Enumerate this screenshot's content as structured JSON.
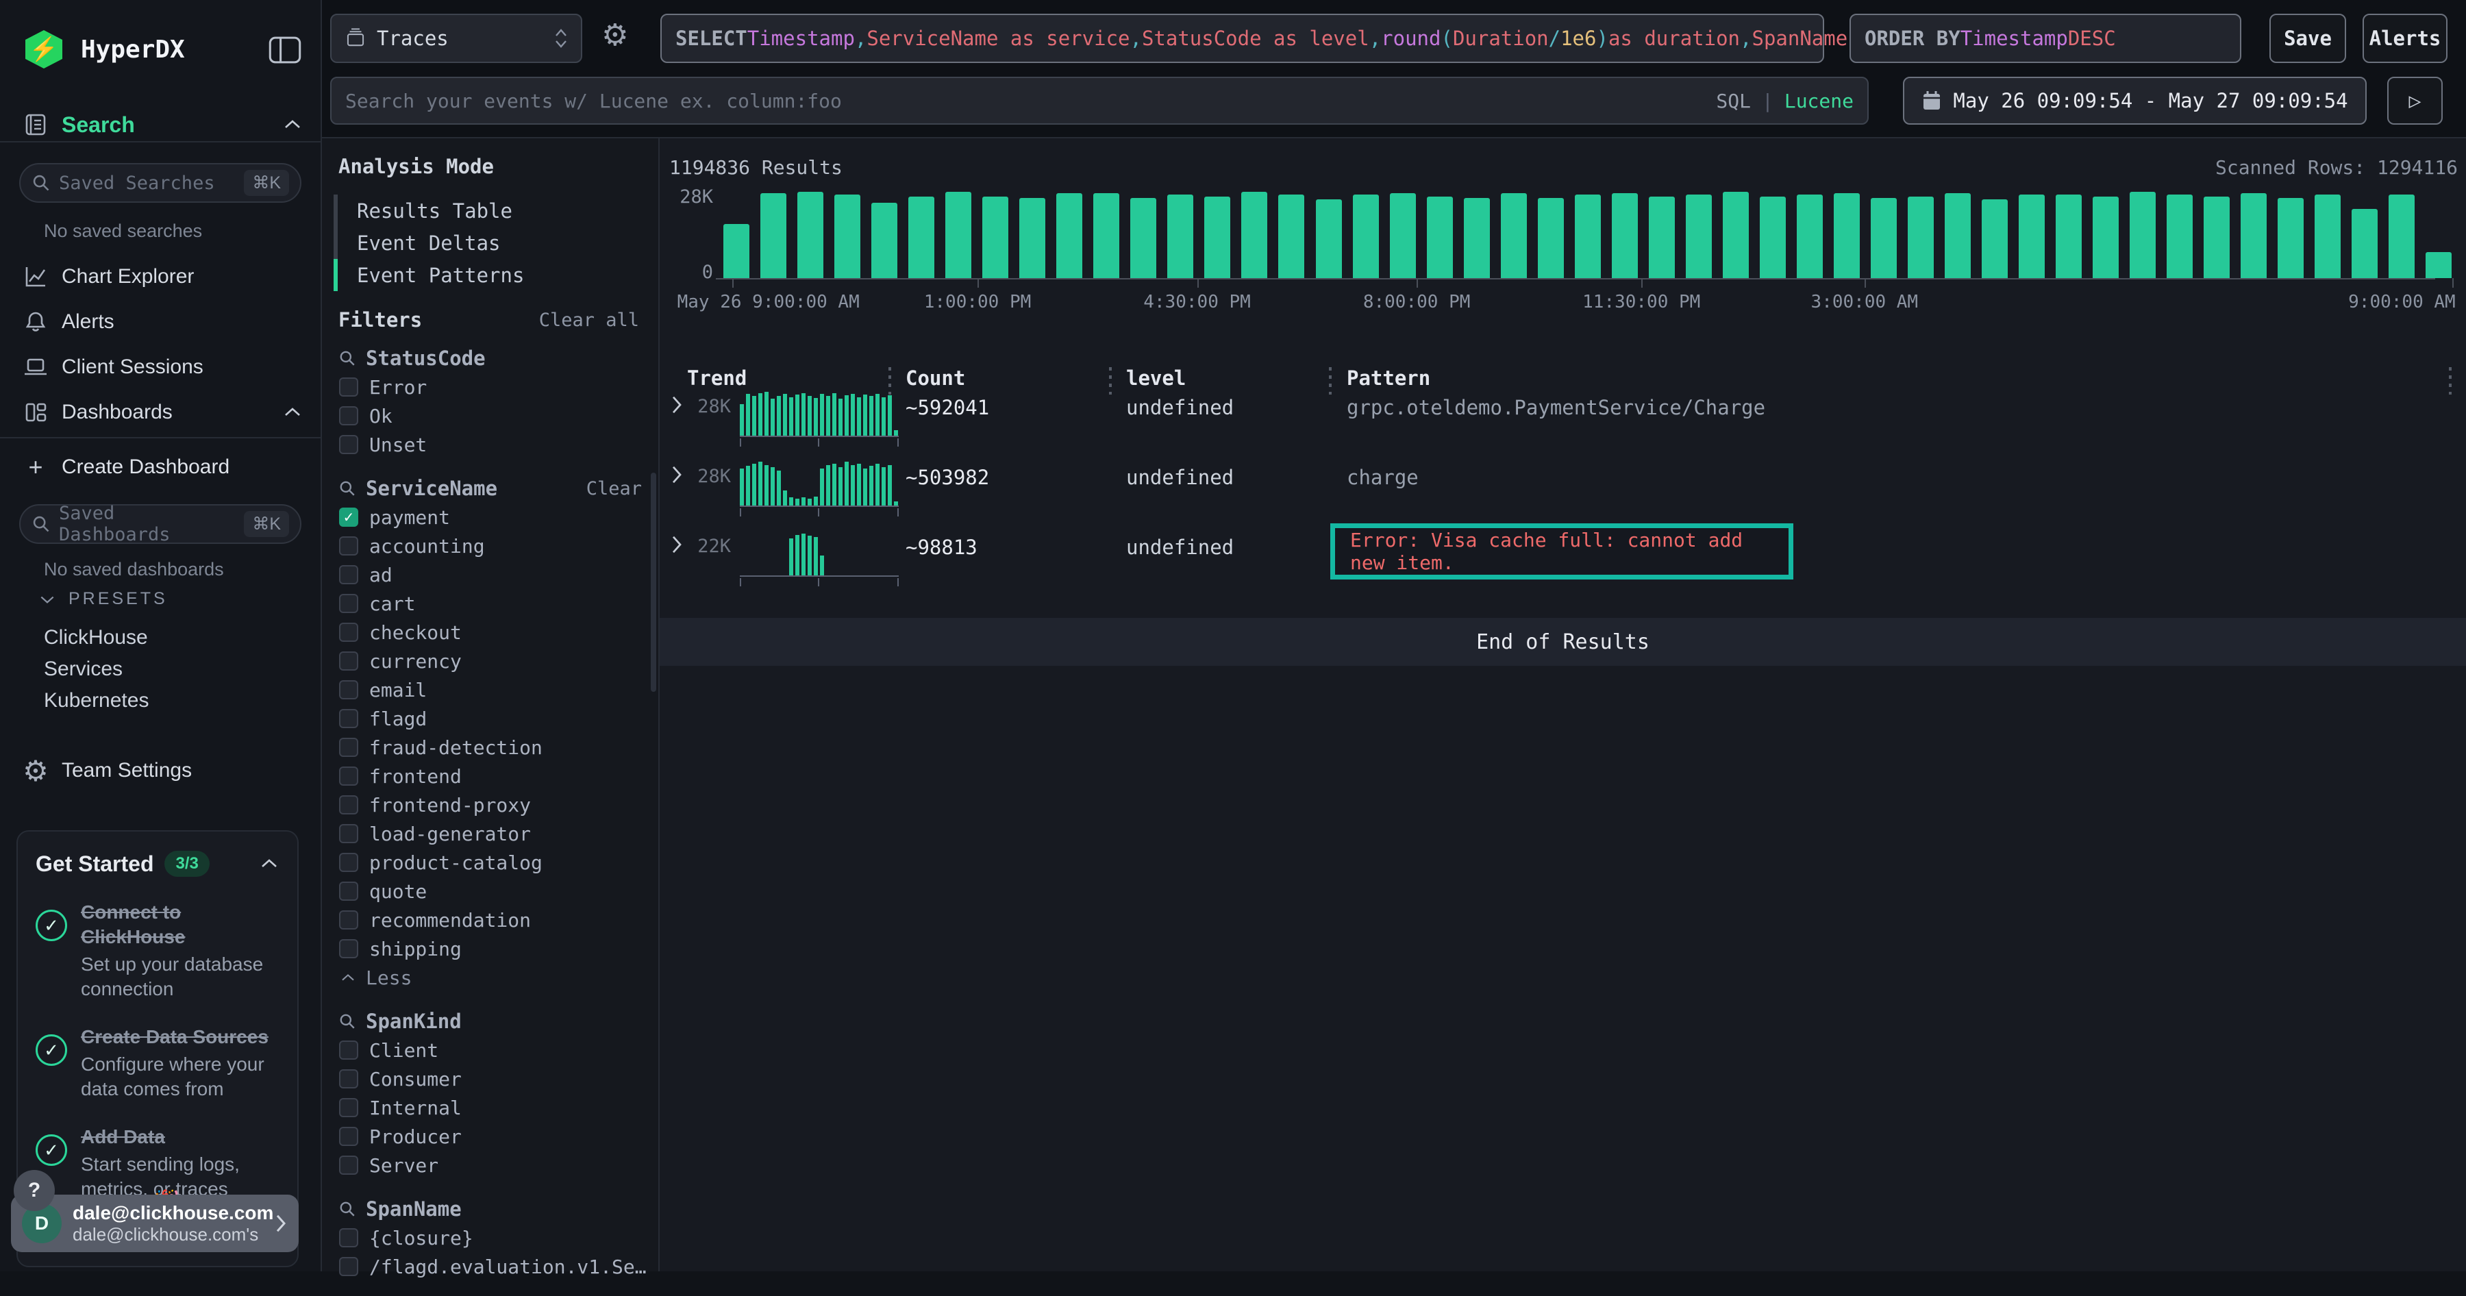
{
  "colors": {
    "accent": "#3fdb9b",
    "bar": "#26c998",
    "error_text": "#ef6a6a",
    "highlight_border": "#14b8a2",
    "logo_green": "#25d45f"
  },
  "sidebar": {
    "brand": "HyperDX",
    "search_label": "Search",
    "saved_searches_placeholder": "Saved Searches",
    "shortcut": "⌘K",
    "no_saved_searches": "No saved searches",
    "nav_chart_explorer": "Chart Explorer",
    "nav_alerts": "Alerts",
    "nav_client_sessions": "Client Sessions",
    "nav_dashboards": "Dashboards",
    "create_dashboard_plus": "+",
    "create_dashboard": "Create Dashboard",
    "saved_dashboards_placeholder": "Saved Dashboards",
    "no_saved_dashboards": "No saved dashboards",
    "presets_label": "PRESETS",
    "presets": [
      "ClickHouse",
      "Services",
      "Kubernetes"
    ],
    "team_settings": "Team Settings",
    "get_started": {
      "title": "Get Started",
      "badge": "3/3",
      "items": [
        {
          "title": "Connect to ClickHouse",
          "subtitle": "Set up your database connection"
        },
        {
          "title": "Create Data Sources",
          "subtitle": "Configure where your data comes from"
        },
        {
          "title": "Add Data",
          "subtitle": "Start sending logs, metrics, or traces"
        }
      ]
    },
    "help": "?",
    "hidden_item_emoji": "🎉",
    "user": {
      "initial": "D",
      "name": "dale@clickhouse.com",
      "subtitle": "dale@clickhouse.com's"
    }
  },
  "topbar": {
    "source": "Traces",
    "sql_tokens": [
      {
        "t": "SELECT ",
        "k": "kw"
      },
      {
        "t": "Timestamp",
        "k": "p"
      },
      {
        "t": ", ",
        "k": "c"
      },
      {
        "t": "ServiceName as service",
        "k": "r"
      },
      {
        "t": ", ",
        "k": "c"
      },
      {
        "t": "StatusCode as level",
        "k": "r"
      },
      {
        "t": ", ",
        "k": "c"
      },
      {
        "t": "round",
        "k": "p"
      },
      {
        "t": "(",
        "k": "c"
      },
      {
        "t": "Duration",
        "k": "r"
      },
      {
        "t": " / ",
        "k": "c"
      },
      {
        "t": "1e6",
        "k": "y"
      },
      {
        "t": ")",
        "k": "c"
      },
      {
        "t": " as duration",
        "k": "r"
      },
      {
        "t": ", ",
        "k": "c"
      },
      {
        "t": "SpanName",
        "k": "r"
      }
    ],
    "order_tokens": [
      {
        "t": "ORDER BY ",
        "k": "kw"
      },
      {
        "t": "Timestamp ",
        "k": "p"
      },
      {
        "t": "DESC",
        "k": "r"
      }
    ],
    "save": "Save",
    "alerts": "Alerts",
    "search_placeholder": "Search your events w/ Lucene ex. column:foo",
    "lang_sql": "SQL",
    "lang_sep": "|",
    "lang_lucene": "Lucene",
    "run_icon": "▷",
    "date_range": "May 26 09:09:54 - May 27 09:09:54"
  },
  "filters_panel": {
    "analysis_title": "Analysis Mode",
    "analysis_options": [
      "Results Table",
      "Event Deltas",
      "Event Patterns"
    ],
    "analysis_active": 2,
    "filters_title": "Filters",
    "clear_all": "Clear all",
    "groups": [
      {
        "name": "StatusCode",
        "items": [
          {
            "label": "Error"
          },
          {
            "label": "Ok"
          },
          {
            "label": "Unset"
          }
        ]
      },
      {
        "name": "ServiceName",
        "clear": "Clear",
        "less": "Less",
        "items": [
          {
            "label": "payment",
            "checked": true
          },
          {
            "label": "accounting"
          },
          {
            "label": "ad"
          },
          {
            "label": "cart"
          },
          {
            "label": "checkout"
          },
          {
            "label": "currency"
          },
          {
            "label": "email"
          },
          {
            "label": "flagd"
          },
          {
            "label": "fraud-detection"
          },
          {
            "label": "frontend"
          },
          {
            "label": "frontend-proxy"
          },
          {
            "label": "load-generator"
          },
          {
            "label": "product-catalog"
          },
          {
            "label": "quote"
          },
          {
            "label": "recommendation"
          },
          {
            "label": "shipping"
          }
        ]
      },
      {
        "name": "SpanKind",
        "items": [
          {
            "label": "Client"
          },
          {
            "label": "Consumer"
          },
          {
            "label": "Internal"
          },
          {
            "label": "Producer"
          },
          {
            "label": "Server"
          }
        ]
      },
      {
        "name": "SpanName",
        "items": [
          {
            "label": "{closure}"
          },
          {
            "label": "/flagd.evaluation.v1.Se…"
          }
        ]
      }
    ]
  },
  "results": {
    "count": "1194836 Results",
    "scanned": "Scanned Rows: 1294116",
    "end": "End of Results"
  },
  "chart_data": {
    "type": "bar",
    "ylabel_top": "28K",
    "ylabel_bottom": "0",
    "ylim": [
      0,
      28000
    ],
    "x_labels": [
      {
        "label": "May 26 9:00:00 AM",
        "pct": 0.5,
        "align": "left"
      },
      {
        "label": "1:00:00 PM",
        "pct": 14.7
      },
      {
        "label": "4:30:00 PM",
        "pct": 27.4
      },
      {
        "label": "8:00:00 PM",
        "pct": 40.1
      },
      {
        "label": "11:30:00 PM",
        "pct": 53.1
      },
      {
        "label": "3:00:00 AM",
        "pct": 66
      },
      {
        "label": "9:00:00 AM",
        "pct": 100,
        "align": "right"
      }
    ],
    "values_k": [
      17.5,
      27.5,
      28,
      27,
      24.5,
      26.5,
      28,
      26.5,
      26,
      27.5,
      27.5,
      26,
      27,
      26.5,
      28,
      27,
      25.5,
      27,
      27.5,
      26.5,
      26,
      27.5,
      26,
      27,
      27.5,
      26.5,
      27,
      28,
      26.5,
      27,
      27.5,
      26,
      26.5,
      27.5,
      25.5,
      27,
      27,
      26.5,
      28,
      27,
      26.5,
      27.5,
      26,
      27,
      22.5,
      27,
      8.5
    ]
  },
  "table": {
    "headers": [
      "Trend",
      "Count",
      "level",
      "Pattern"
    ],
    "rows": [
      {
        "trend_max": "28K",
        "count": "~592041",
        "level": "undefined",
        "pattern": "grpc.oteldemo.PaymentService/Charge",
        "error": false,
        "spark": [
          0.72,
          0.95,
          0.9,
          0.97,
          1.0,
          0.85,
          0.9,
          0.95,
          0.88,
          0.93,
          0.97,
          0.9,
          0.86,
          0.95,
          0.9,
          0.97,
          0.85,
          0.92,
          0.95,
          0.88,
          0.93,
          0.9,
          0.95,
          0.88,
          0.92,
          0.12
        ]
      },
      {
        "trend_max": "28K",
        "count": "~503982",
        "level": "undefined",
        "pattern": "charge",
        "error": false,
        "spark": [
          0.85,
          0.9,
          0.95,
          1.0,
          0.92,
          0.88,
          0.8,
          0.35,
          0.18,
          0.15,
          0.18,
          0.15,
          0.2,
          0.85,
          0.92,
          0.95,
          0.88,
          1.0,
          0.92,
          0.95,
          0.85,
          0.9,
          0.95,
          0.88,
          0.92,
          0.1
        ]
      },
      {
        "trend_max": "22K",
        "count": "~98813",
        "level": "undefined",
        "pattern": "Error: Visa cache full: cannot add new item.",
        "error": true,
        "spark": [
          0,
          0,
          0,
          0,
          0,
          0,
          0,
          0,
          0.85,
          0.92,
          0.95,
          0.9,
          0.88,
          0.45,
          0,
          0,
          0,
          0,
          0,
          0,
          0,
          0,
          0,
          0,
          0,
          0
        ]
      }
    ]
  }
}
